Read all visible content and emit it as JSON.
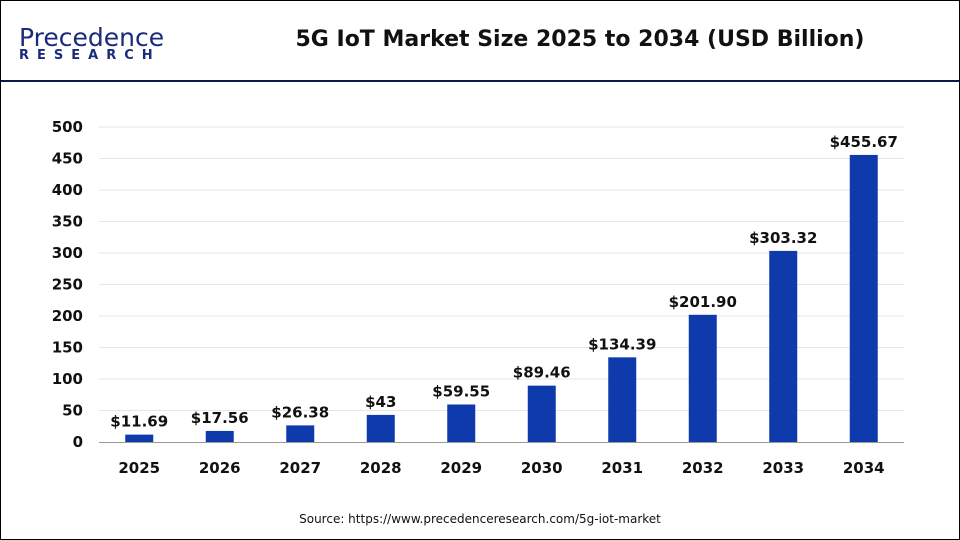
{
  "header": {
    "logo_line1": "Precedence",
    "logo_line2": "RESEARCH",
    "title": "5G IoT Market Size 2025 to 2034 (USD Billion)"
  },
  "source": "Source: https://www.precedenceresearch.com/5g-iot-market",
  "chart_data": {
    "type": "bar",
    "title": "5G IoT Market Size 2025 to 2034 (USD Billion)",
    "categories": [
      "2025",
      "2026",
      "2027",
      "2028",
      "2029",
      "2030",
      "2031",
      "2032",
      "2033",
      "2034"
    ],
    "values": [
      11.69,
      17.56,
      26.38,
      43,
      59.55,
      89.46,
      134.39,
      201.9,
      303.32,
      455.67
    ],
    "data_labels": [
      "$11.69",
      "$17.56",
      "$26.38",
      "$43",
      "$59.55",
      "$89.46",
      "$134.39",
      "$201.90",
      "$303.32",
      "$455.67"
    ],
    "ylim": [
      0,
      500
    ],
    "yticks": [
      0,
      50,
      100,
      150,
      200,
      250,
      300,
      350,
      400,
      450,
      500
    ],
    "grid": true,
    "bar_color": "#0f3aab",
    "xlabel": "",
    "ylabel": ""
  }
}
